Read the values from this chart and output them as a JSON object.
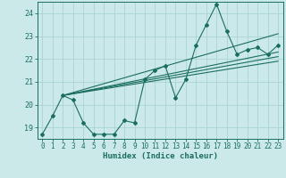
{
  "xlabel": "Humidex (Indice chaleur)",
  "bg_color": "#cce9e9",
  "grid_color": "#aad4d4",
  "line_color": "#1a6e5e",
  "xlim": [
    -0.5,
    23.5
  ],
  "ylim": [
    18.5,
    24.5
  ],
  "yticks": [
    19,
    20,
    21,
    22,
    23,
    24
  ],
  "xticks": [
    0,
    1,
    2,
    3,
    4,
    5,
    6,
    7,
    8,
    9,
    10,
    11,
    12,
    13,
    14,
    15,
    16,
    17,
    18,
    19,
    20,
    21,
    22,
    23
  ],
  "series1_x": [
    0,
    1,
    2,
    3,
    4,
    5,
    6,
    7,
    8,
    9,
    10,
    11,
    12,
    13,
    14,
    15,
    16,
    17,
    18,
    19,
    20,
    21,
    22,
    23
  ],
  "series1_y": [
    18.7,
    19.5,
    20.4,
    20.2,
    19.2,
    18.7,
    18.7,
    18.7,
    19.3,
    19.2,
    21.1,
    21.5,
    21.7,
    20.3,
    21.1,
    22.6,
    23.5,
    24.4,
    23.2,
    22.2,
    22.4,
    22.5,
    22.2,
    22.6
  ],
  "reg_lines": [
    {
      "x": [
        2,
        23
      ],
      "y": [
        20.4,
        21.9
      ]
    },
    {
      "x": [
        2,
        23
      ],
      "y": [
        20.4,
        22.1
      ]
    },
    {
      "x": [
        2,
        23
      ],
      "y": [
        20.4,
        22.3
      ]
    },
    {
      "x": [
        2,
        23
      ],
      "y": [
        20.4,
        23.1
      ]
    }
  ]
}
